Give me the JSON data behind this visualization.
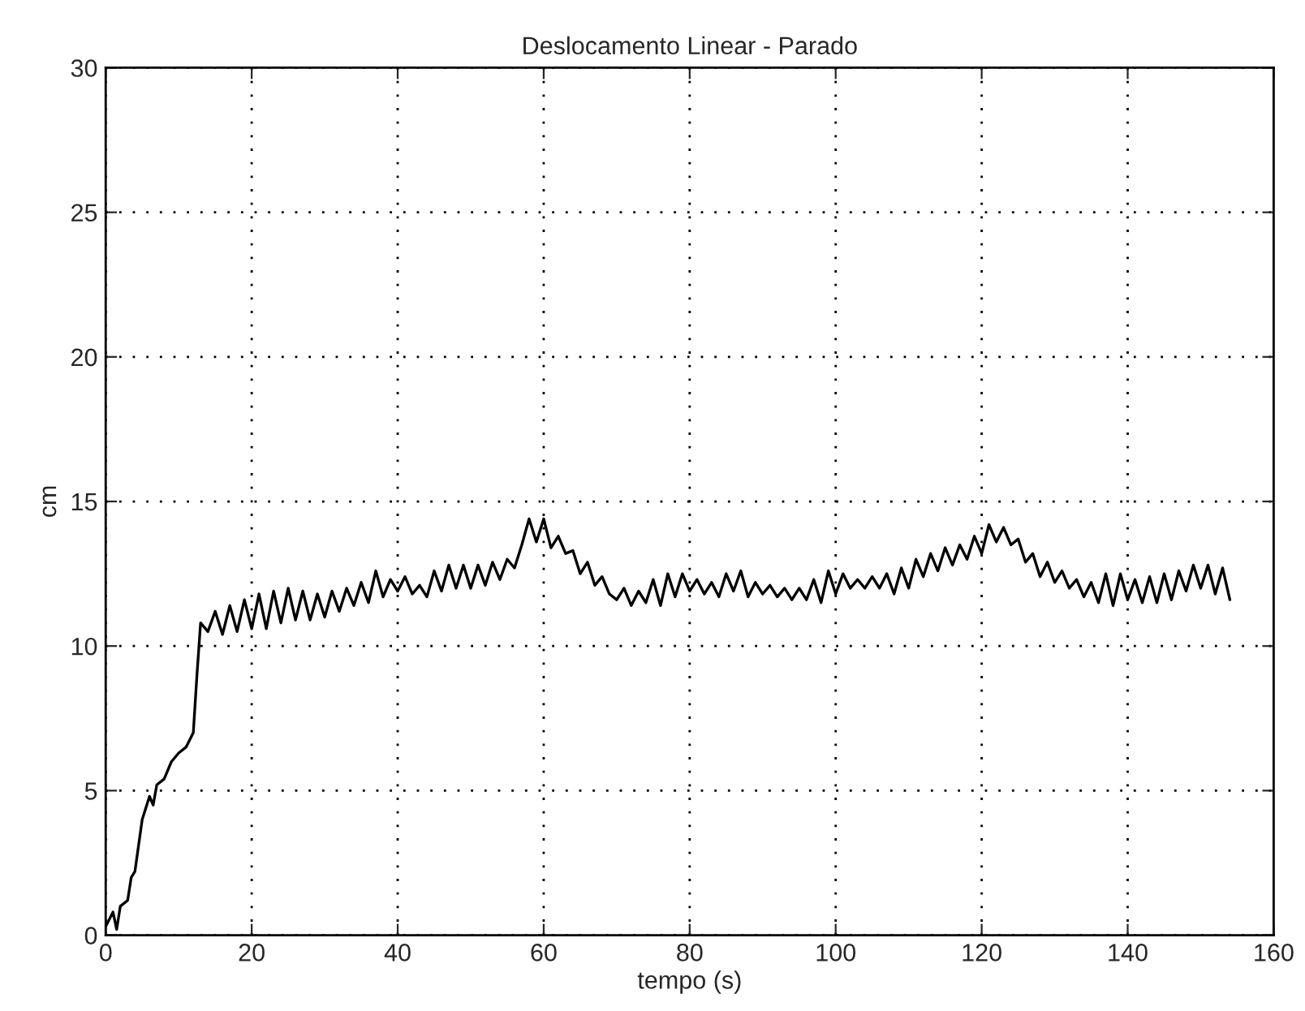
{
  "chart_data": {
    "type": "line",
    "title": "Deslocamento Linear - Parado",
    "xlabel": "tempo (s)",
    "ylabel": "cm",
    "x": [
      0,
      1,
      1.5,
      2,
      3,
      3.5,
      4,
      5,
      6,
      6.5,
      7,
      8,
      9,
      10,
      11,
      12,
      12.5,
      13,
      14,
      15,
      16,
      17,
      18,
      19,
      20,
      21,
      22,
      23,
      24,
      25,
      26,
      27,
      28,
      29,
      30,
      31,
      32,
      33,
      34,
      35,
      36,
      37,
      38,
      39,
      40,
      41,
      42,
      43,
      44,
      45,
      46,
      47,
      48,
      49,
      50,
      51,
      52,
      53,
      54,
      55,
      56,
      57,
      58,
      59,
      60,
      61,
      62,
      63,
      64,
      65,
      66,
      67,
      68,
      69,
      70,
      71,
      72,
      73,
      74,
      75,
      76,
      77,
      78,
      79,
      80,
      81,
      82,
      83,
      84,
      85,
      86,
      87,
      88,
      89,
      90,
      91,
      92,
      93,
      94,
      95,
      96,
      97,
      98,
      99,
      100,
      101,
      102,
      103,
      104,
      105,
      106,
      107,
      108,
      109,
      110,
      111,
      112,
      113,
      114,
      115,
      116,
      117,
      118,
      119,
      120,
      121,
      122,
      123,
      124,
      125,
      126,
      127,
      128,
      129,
      130,
      131,
      132,
      133,
      134,
      135,
      136,
      137,
      138,
      139,
      140,
      141,
      142,
      143,
      144,
      145,
      146,
      147,
      148,
      149,
      150,
      151,
      152,
      153,
      154
    ],
    "series": [
      {
        "color": "#000000",
        "values": [
          0.3,
          0.8,
          0.2,
          1.0,
          1.2,
          2.0,
          2.2,
          4.0,
          4.8,
          4.5,
          5.2,
          5.4,
          6.0,
          6.3,
          6.5,
          7.0,
          9.0,
          10.8,
          10.5,
          11.2,
          10.4,
          11.4,
          10.5,
          11.6,
          10.6,
          11.8,
          10.6,
          11.9,
          10.8,
          12.0,
          10.9,
          11.9,
          10.9,
          11.8,
          11.0,
          11.9,
          11.2,
          12.0,
          11.4,
          12.2,
          11.5,
          12.6,
          11.7,
          12.3,
          11.9,
          12.4,
          11.8,
          12.1,
          11.7,
          12.6,
          11.9,
          12.8,
          12.0,
          12.8,
          12.0,
          12.8,
          12.1,
          12.9,
          12.3,
          13.0,
          12.7,
          13.5,
          14.4,
          13.6,
          14.4,
          13.4,
          13.8,
          13.2,
          13.3,
          12.5,
          12.9,
          12.1,
          12.4,
          11.8,
          11.6,
          12.0,
          11.4,
          11.9,
          11.5,
          12.3,
          11.4,
          12.5,
          11.7,
          12.5,
          11.9,
          12.3,
          11.8,
          12.2,
          11.7,
          12.5,
          11.9,
          12.6,
          11.7,
          12.2,
          11.8,
          12.1,
          11.7,
          12.0,
          11.6,
          12.0,
          11.6,
          12.3,
          11.5,
          12.6,
          11.8,
          12.5,
          12.0,
          12.3,
          12.0,
          12.4,
          12.0,
          12.5,
          11.8,
          12.7,
          12.0,
          13.0,
          12.4,
          13.2,
          12.6,
          13.4,
          12.8,
          13.5,
          13.0,
          13.8,
          13.2,
          14.2,
          13.6,
          14.1,
          13.5,
          13.7,
          12.9,
          13.2,
          12.4,
          12.9,
          12.2,
          12.6,
          12.0,
          12.3,
          11.7,
          12.2,
          11.5,
          12.5,
          11.4,
          12.5,
          11.6,
          12.3,
          11.5,
          12.4,
          11.5,
          12.5,
          11.6,
          12.6,
          11.9,
          12.8,
          12.0,
          12.8,
          11.8,
          12.7,
          11.6
        ]
      }
    ],
    "xlim": [
      0,
      160
    ],
    "xticks": [
      0,
      20,
      40,
      60,
      80,
      100,
      120,
      140,
      160
    ],
    "ylim": [
      0,
      30
    ],
    "yticks": [
      0,
      5,
      10,
      15,
      20,
      25,
      30
    ],
    "grid": true,
    "line_style": "solid"
  }
}
